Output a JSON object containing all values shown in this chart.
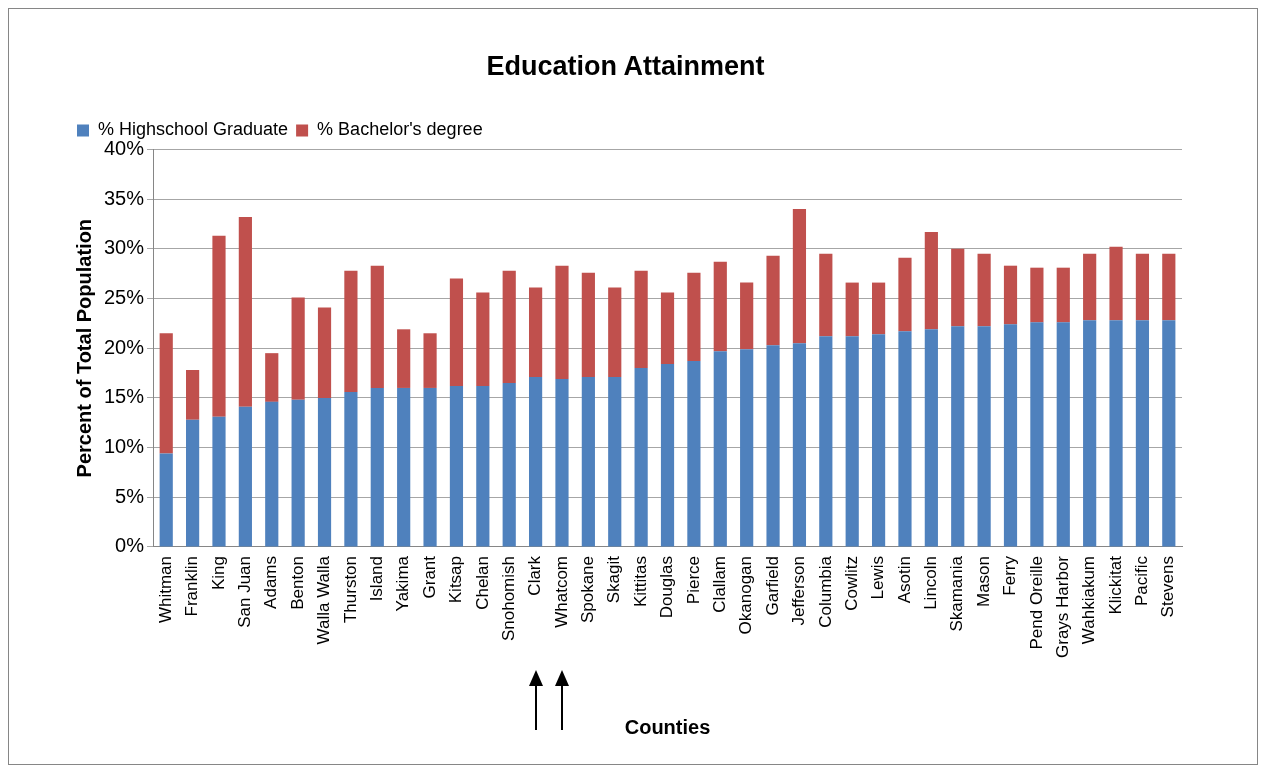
{
  "chart_data": {
    "type": "bar",
    "title": "Education Attainment",
    "xlabel": "Counties",
    "ylabel": "Percent of Total Population",
    "categories": [
      "Whitman",
      "Franklin",
      "King",
      "San Juan",
      "Adams",
      "Benton",
      "Walla Walla",
      "Thurston",
      "Island",
      "Yakima",
      "Grant",
      "Kitsap",
      "Chelan",
      "Snohomish",
      "Clark",
      "Whatcom",
      "Spokane",
      "Skagit",
      "Kittitas",
      "Douglas",
      "Pierce",
      "Clallam",
      "Okanogan",
      "Garfield",
      "Jefferson",
      "Columbia",
      "Cowlitz",
      "Lewis",
      "Asotin",
      "Lincoln",
      "Skamania",
      "Mason",
      "Ferry",
      "Pend Oreille",
      "Grays Harbor",
      "Wahkiakum",
      "Klickitat",
      "Pacific",
      "Stevens"
    ],
    "series": [
      {
        "name": "% Highschool Graduate",
        "color": "#4f81bd",
        "values": [
          9.4,
          12.8,
          13.1,
          14.1,
          14.6,
          14.8,
          15.0,
          15.6,
          16.0,
          16.0,
          16.0,
          16.2,
          16.2,
          16.5,
          17.1,
          16.9,
          17.1,
          17.1,
          18.0,
          18.4,
          18.7,
          19.7,
          19.9,
          20.3,
          20.5,
          21.2,
          21.2,
          21.4,
          21.7,
          21.9,
          22.2,
          22.2,
          22.4,
          22.6,
          22.6,
          22.8,
          22.8,
          22.8,
          22.8
        ]
      },
      {
        "name": "% Bachelor's degree",
        "color": "#c0504d",
        "values": [
          12.1,
          5.0,
          18.2,
          19.1,
          4.9,
          10.3,
          9.1,
          12.2,
          12.3,
          5.9,
          5.5,
          10.8,
          9.4,
          11.3,
          9.0,
          11.4,
          10.5,
          9.0,
          9.8,
          7.2,
          8.9,
          9.0,
          6.7,
          9.0,
          13.5,
          8.3,
          5.4,
          5.2,
          7.4,
          9.8,
          7.8,
          7.3,
          5.9,
          5.5,
          5.5,
          6.7,
          7.4,
          6.7,
          6.7
        ]
      }
    ],
    "stacked": true,
    "ylim": [
      0,
      40
    ],
    "yticks": [
      {
        "value": 0,
        "label": "0%"
      },
      {
        "value": 5,
        "label": "5%"
      },
      {
        "value": 10,
        "label": "10%"
      },
      {
        "value": 15,
        "label": "15%"
      },
      {
        "value": 20,
        "label": "20%"
      },
      {
        "value": 25,
        "label": "25%"
      },
      {
        "value": 30,
        "label": "30%"
      },
      {
        "value": 35,
        "label": "35%"
      },
      {
        "value": 40,
        "label": "40%"
      }
    ],
    "grid": "y",
    "legend": "top"
  }
}
